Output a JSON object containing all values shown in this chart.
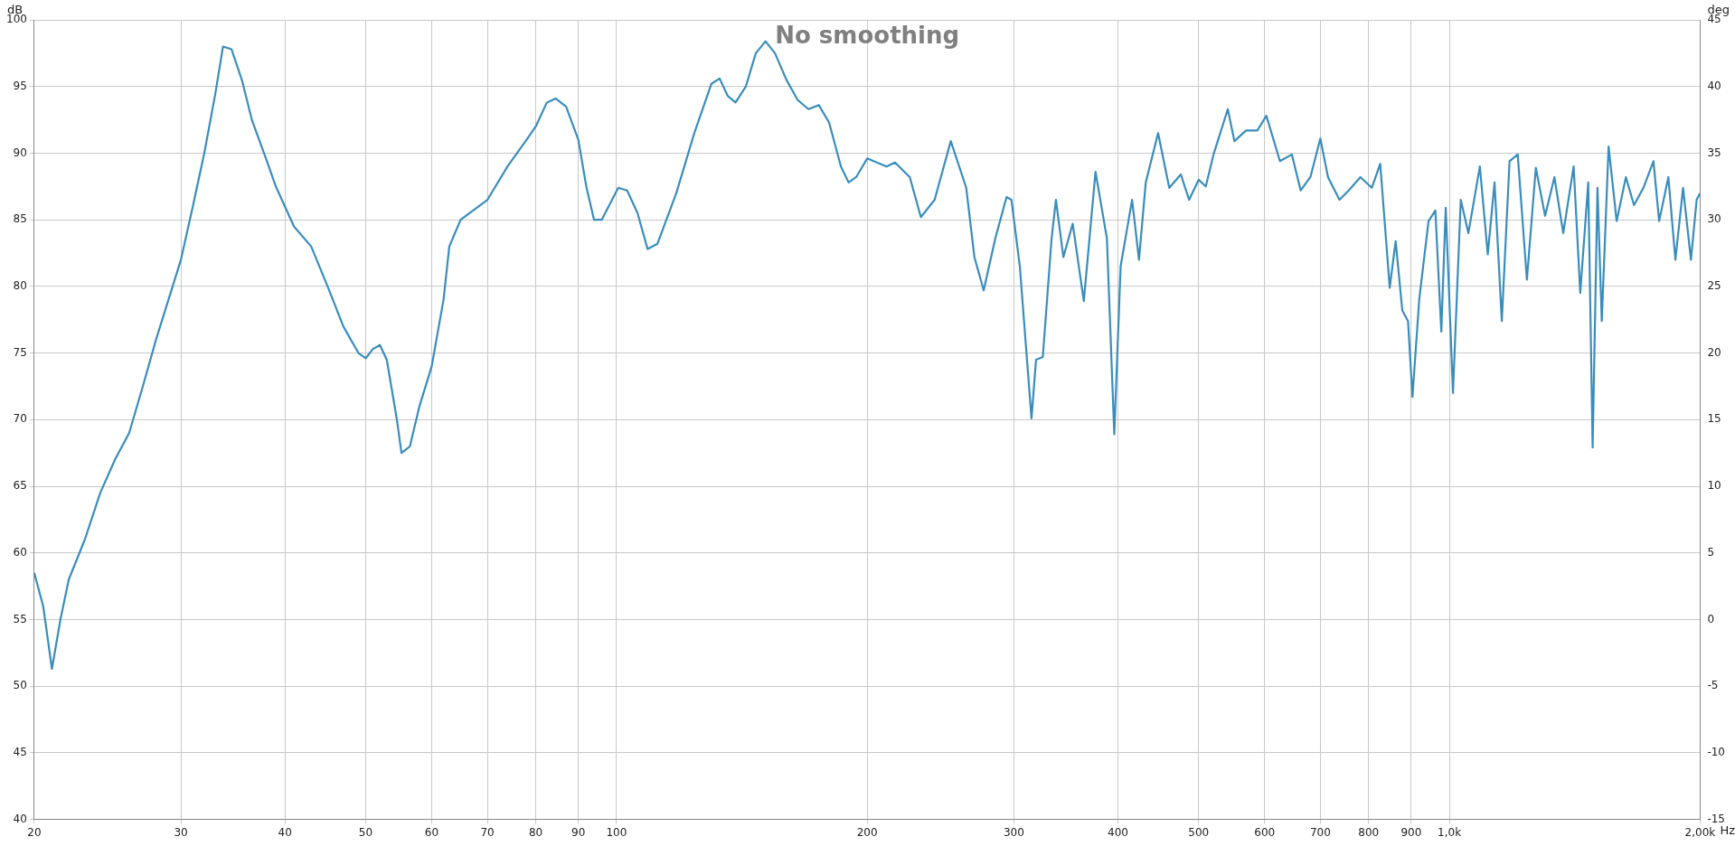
{
  "chart_data": {
    "type": "line",
    "title": "No smoothing",
    "xlabel": "Hz",
    "ylabel": "dB",
    "y2label": "deg",
    "log": "x",
    "grid": true,
    "legend": false,
    "marker": "none",
    "line_style": "solid",
    "xlim": [
      20,
      2000
    ],
    "xticks": [
      20,
      30,
      40,
      50,
      60,
      70,
      80,
      90,
      100,
      200,
      300,
      400,
      500,
      600,
      700,
      800,
      900,
      {
        "value": 1000,
        "label": "1,0k"
      },
      {
        "value": 2000,
        "label": "2,00k"
      }
    ],
    "ylim": [
      40,
      100
    ],
    "yticks": [
      40,
      45,
      50,
      55,
      60,
      65,
      70,
      75,
      80,
      85,
      90,
      95,
      100
    ],
    "y2lim": [
      -15,
      45
    ],
    "y2ticks": [
      -15,
      -10,
      -5,
      0,
      5,
      10,
      15,
      20,
      25,
      30,
      35,
      40,
      45
    ],
    "series": [
      {
        "color": "#3a8dbb",
        "x": [
          20,
          20.5,
          21,
          21.5,
          22,
          23,
          24,
          25,
          26,
          27,
          28,
          30,
          31,
          32,
          33,
          33.7,
          34.5,
          35.5,
          36.5,
          38,
          39,
          41,
          43,
          45,
          47,
          49,
          50,
          51,
          52,
          53,
          54.5,
          55.2,
          56.5,
          58,
          60,
          62,
          63,
          65,
          70,
          74,
          78,
          80,
          82.5,
          84.5,
          87,
          90,
          92,
          94,
          96,
          100.5,
          103,
          106,
          109,
          112,
          118,
          124,
          130,
          133,
          136,
          139,
          143,
          147,
          151,
          155,
          160,
          165,
          170,
          175,
          180,
          186,
          190,
          194,
          200,
          211,
          216,
          225,
          232,
          241,
          252,
          263,
          269,
          276,
          285,
          294,
          298,
          305,
          315,
          319,
          325,
          333,
          337,
          344,
          353,
          364,
          376,
          388,
          396,
          403,
          416,
          424,
          432,
          447,
          461,
          476,
          487,
          500,
          510,
          521,
          542,
          552,
          570,
          588,
          603,
          626,
          647,
          663,
          681,
          700,
          715,
          738,
          757,
          782,
          807,
          826,
          848,
          862,
          878,
          892,
          903,
          920,
          944,
          962,
          978,
          990,
          1010,
          1032,
          1054,
          1088,
          1112,
          1133,
          1156,
          1181,
          1208,
          1239,
          1270,
          1303,
          1337,
          1370,
          1410,
          1436,
          1468,
          1486,
          1506,
          1524,
          1553,
          1588,
          1629,
          1666,
          1710,
          1758,
          1786,
          1832,
          1868,
          1908,
          1950,
          1981,
          2000
        ],
        "values": [
          58.5,
          56,
          51.3,
          55,
          58,
          61,
          64.5,
          67,
          69,
          72.5,
          76,
          82,
          86,
          90,
          94.5,
          98,
          97.8,
          95.5,
          92.5,
          89.5,
          87.5,
          84.5,
          83,
          80,
          77,
          75,
          74.6,
          75.3,
          75.6,
          74.5,
          70,
          67.5,
          68,
          71,
          74,
          79,
          83,
          85,
          86.5,
          89,
          91,
          92,
          93.8,
          94.1,
          93.5,
          91,
          87.5,
          85,
          85,
          87.4,
          87.2,
          85.5,
          82.8,
          83.2,
          87,
          91.5,
          95.2,
          95.6,
          94.3,
          93.8,
          95,
          97.5,
          98.4,
          97.5,
          95.5,
          94,
          93.3,
          93.6,
          92.3,
          89,
          87.8,
          88.2,
          89.6,
          89,
          89.3,
          88.2,
          85.2,
          86.5,
          90.9,
          87.4,
          82.2,
          79.7,
          83.6,
          86.7,
          86.5,
          81.5,
          70.1,
          74.5,
          74.7,
          83.6,
          86.5,
          82.2,
          84.7,
          78.9,
          88.6,
          83.6,
          68.9,
          81.5,
          86.5,
          82,
          87.8,
          91.5,
          87.4,
          88.4,
          86.5,
          88,
          87.5,
          89.9,
          93.3,
          90.9,
          91.7,
          91.7,
          92.8,
          89.4,
          89.9,
          87.2,
          88.2,
          91.1,
          88.2,
          86.5,
          87.2,
          88.2,
          87.4,
          89.2,
          79.9,
          83.4,
          78.2,
          77.4,
          71.7,
          79,
          84.9,
          85.7,
          76.6,
          85.9,
          72,
          86.5,
          84,
          89,
          82.4,
          87.8,
          77.4,
          89.4,
          89.9,
          80.5,
          88.9,
          85.3,
          88.2,
          84,
          89,
          79.5,
          87.8,
          67.9,
          87.4,
          77.4,
          90.5,
          84.9,
          88.2,
          86.1,
          87.4,
          89.4,
          84.9,
          88.2,
          82,
          87.4,
          82,
          86.5,
          87
        ]
      }
    ]
  }
}
